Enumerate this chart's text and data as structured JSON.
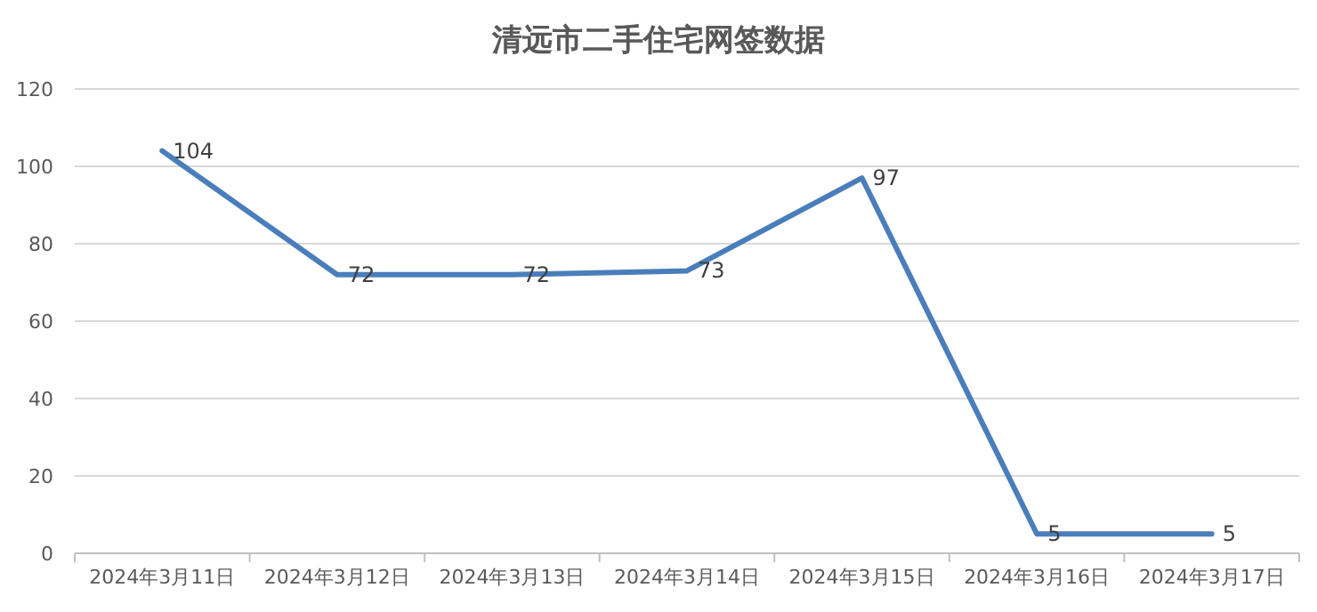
{
  "chart_data": {
    "type": "line",
    "title": "清远市二手住宅网签数据",
    "categories": [
      "2024年3月11日",
      "2024年3月12日",
      "2024年3月13日",
      "2024年3月14日",
      "2024年3月15日",
      "2024年3月16日",
      "2024年3月17日"
    ],
    "series": [
      {
        "color": "#4a7ebb",
        "values": [
          104,
          72,
          72,
          73,
          97,
          5,
          5
        ]
      }
    ],
    "ylim": [
      0,
      120
    ],
    "yticks": [
      0,
      20,
      40,
      60,
      80,
      100,
      120
    ],
    "grid": "y",
    "data_labels": true,
    "marker": "none",
    "line_style": "solid"
  }
}
